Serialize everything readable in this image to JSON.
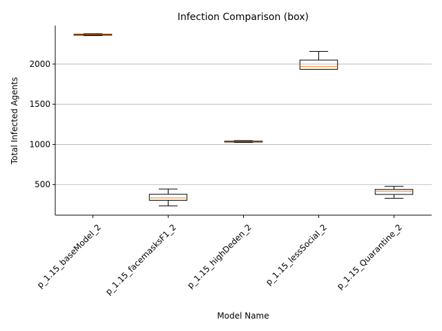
{
  "chart_data": {
    "type": "box",
    "title": "Infection Comparison (box)",
    "xlabel": "Model Name",
    "ylabel": "Total Infected Agents",
    "ylim": [
      120,
      2480
    ],
    "yticks": [
      500,
      1000,
      1500,
      2000
    ],
    "grid": "y",
    "categories": [
      "p_1.15_baseModel_2",
      "p_1.15_facemasksF1_2",
      "p_1.15_highDeden_2",
      "p_1.15_lessSocial_2",
      "p_1.15_Quarantine_2"
    ],
    "boxes": [
      {
        "min": 2355,
        "q1": 2360,
        "median": 2368,
        "q3": 2373,
        "max": 2378
      },
      {
        "min": 235,
        "q1": 305,
        "median": 335,
        "q3": 380,
        "max": 445
      },
      {
        "min": 1025,
        "q1": 1030,
        "median": 1038,
        "q3": 1043,
        "max": 1048
      },
      {
        "min": 1935,
        "q1": 1935,
        "median": 1968,
        "q3": 2050,
        "max": 2158
      },
      {
        "min": 330,
        "q1": 378,
        "median": 418,
        "q3": 440,
        "max": 478
      }
    ],
    "colors": {
      "box": "#000000",
      "median": "#ff7f0e",
      "grid": "#b0b0b0"
    }
  }
}
